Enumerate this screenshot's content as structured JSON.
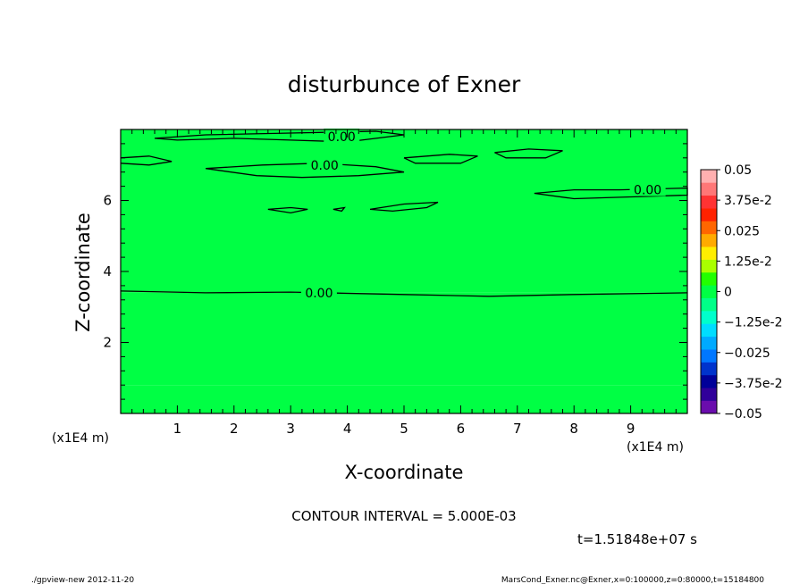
{
  "chart_data": {
    "type": "heatmap",
    "title": "disturbunce of Exner",
    "xlabel": "X-coordinate",
    "ylabel": "Z-coordinate",
    "x_unit_left": "(x1E4 m)",
    "x_unit_right": "(x1E4 m)",
    "xlim": [
      0,
      10
    ],
    "ylim": [
      0,
      8
    ],
    "x_ticks": [
      1,
      2,
      3,
      4,
      5,
      6,
      7,
      8,
      9
    ],
    "x_tick_labels": [
      "1",
      "2",
      "3",
      "4",
      "5",
      "6",
      "7",
      "8",
      "9"
    ],
    "y_ticks": [
      2,
      4,
      6
    ],
    "y_tick_labels": [
      "2",
      "4",
      "6"
    ],
    "contour_interval_text": "CONTOUR INTERVAL = 5.000E-03",
    "time_text": "t=1.51848e+07 s",
    "contour_labels": [
      {
        "text": "0.00",
        "x": 3.9,
        "z": 7.8
      },
      {
        "text": "0.00",
        "x": 3.6,
        "z": 7.0
      },
      {
        "text": "0.00",
        "x": 9.3,
        "z": 6.3
      },
      {
        "text": "0.00",
        "x": 3.5,
        "z": 3.4
      }
    ],
    "contours": [
      {
        "level": 0.0,
        "points": [
          [
            0,
            3.45
          ],
          [
            1.5,
            3.4
          ],
          [
            3.0,
            3.42
          ],
          [
            5.0,
            3.35
          ],
          [
            6.5,
            3.3
          ],
          [
            8.0,
            3.35
          ],
          [
            10,
            3.4
          ]
        ]
      },
      {
        "level": 0.0,
        "points": [
          [
            0.6,
            7.75
          ],
          [
            1.5,
            7.85
          ],
          [
            3.0,
            7.9
          ],
          [
            4.5,
            7.95
          ],
          [
            5.0,
            7.85
          ],
          [
            4.0,
            7.65
          ],
          [
            3.0,
            7.7
          ],
          [
            2.0,
            7.75
          ],
          [
            1.0,
            7.7
          ],
          [
            0.6,
            7.75
          ]
        ]
      },
      {
        "level": 0.0,
        "points": [
          [
            0,
            7.2
          ],
          [
            0.5,
            7.25
          ],
          [
            0.9,
            7.1
          ],
          [
            0.5,
            7.0
          ],
          [
            0,
            7.05
          ]
        ]
      },
      {
        "level": 0.0,
        "points": [
          [
            1.5,
            6.9
          ],
          [
            2.5,
            7.0
          ],
          [
            3.5,
            7.05
          ],
          [
            4.5,
            6.95
          ],
          [
            5.0,
            6.8
          ],
          [
            4.2,
            6.7
          ],
          [
            3.2,
            6.65
          ],
          [
            2.4,
            6.7
          ],
          [
            1.5,
            6.9
          ]
        ]
      },
      {
        "level": 0.0,
        "points": [
          [
            5.0,
            7.2
          ],
          [
            5.8,
            7.3
          ],
          [
            6.3,
            7.25
          ],
          [
            6.0,
            7.05
          ],
          [
            5.2,
            7.05
          ],
          [
            5.0,
            7.2
          ]
        ]
      },
      {
        "level": 0.0,
        "points": [
          [
            6.6,
            7.35
          ],
          [
            7.2,
            7.45
          ],
          [
            7.8,
            7.4
          ],
          [
            7.5,
            7.2
          ],
          [
            6.8,
            7.2
          ],
          [
            6.6,
            7.35
          ]
        ]
      },
      {
        "level": 0.0,
        "points": [
          [
            7.3,
            6.2
          ],
          [
            8.0,
            6.3
          ],
          [
            8.8,
            6.3
          ],
          [
            10,
            6.35
          ],
          [
            10,
            6.15
          ],
          [
            9.0,
            6.1
          ],
          [
            8.0,
            6.05
          ],
          [
            7.3,
            6.2
          ]
        ]
      },
      {
        "level": 0.0,
        "points": [
          [
            2.6,
            5.75
          ],
          [
            3.0,
            5.8
          ],
          [
            3.3,
            5.75
          ],
          [
            3.0,
            5.65
          ],
          [
            2.6,
            5.75
          ]
        ]
      },
      {
        "level": 0.0,
        "points": [
          [
            3.75,
            5.75
          ],
          [
            3.95,
            5.8
          ],
          [
            3.9,
            5.7
          ],
          [
            3.75,
            5.75
          ]
        ]
      },
      {
        "level": 0.0,
        "points": [
          [
            4.4,
            5.75
          ],
          [
            5.0,
            5.9
          ],
          [
            5.6,
            5.95
          ],
          [
            5.4,
            5.8
          ],
          [
            4.8,
            5.7
          ],
          [
            4.4,
            5.75
          ]
        ]
      }
    ],
    "field": {
      "description_bands": [
        {
          "z_from": 0.0,
          "z_to": 0.8,
          "value": 0.0015
        },
        {
          "z_from": 0.8,
          "z_to": 3.4,
          "value": 0.0008
        },
        {
          "z_from": 3.4,
          "z_to": 8.0,
          "value": -0.0008
        }
      ]
    },
    "colorbar": {
      "min": -0.05,
      "max": 0.05,
      "colors": [
        "#6a0dad",
        "#30009a",
        "#000099",
        "#0033cc",
        "#0077ff",
        "#00aaff",
        "#00ddff",
        "#00ffcc",
        "#00ff88",
        "#00ff44",
        "#22ff00",
        "#aaff00",
        "#ffee00",
        "#ffaa00",
        "#ff6600",
        "#ff2200",
        "#ff3333",
        "#ff7777",
        "#ffb0b0"
      ],
      "tick_labels": [
        {
          "value": 0.05,
          "text": "0.05"
        },
        {
          "value": 0.0375,
          "text": "3.75e-2"
        },
        {
          "value": 0.025,
          "text": "0.025"
        },
        {
          "value": 0.0125,
          "text": "1.25e-2"
        },
        {
          "value": 0.0,
          "text": "0"
        },
        {
          "value": -0.0125,
          "text": "−1.25e-2"
        },
        {
          "value": -0.025,
          "text": "−0.025"
        },
        {
          "value": -0.0375,
          "text": "−3.75e-2"
        },
        {
          "value": -0.05,
          "text": "−0.05"
        }
      ]
    }
  },
  "footer": {
    "left": "./gpview-new   2012-11-20",
    "right": "MarsCond_Exner.nc@Exner,x=0:100000,z=0:80000,t=15184800"
  }
}
